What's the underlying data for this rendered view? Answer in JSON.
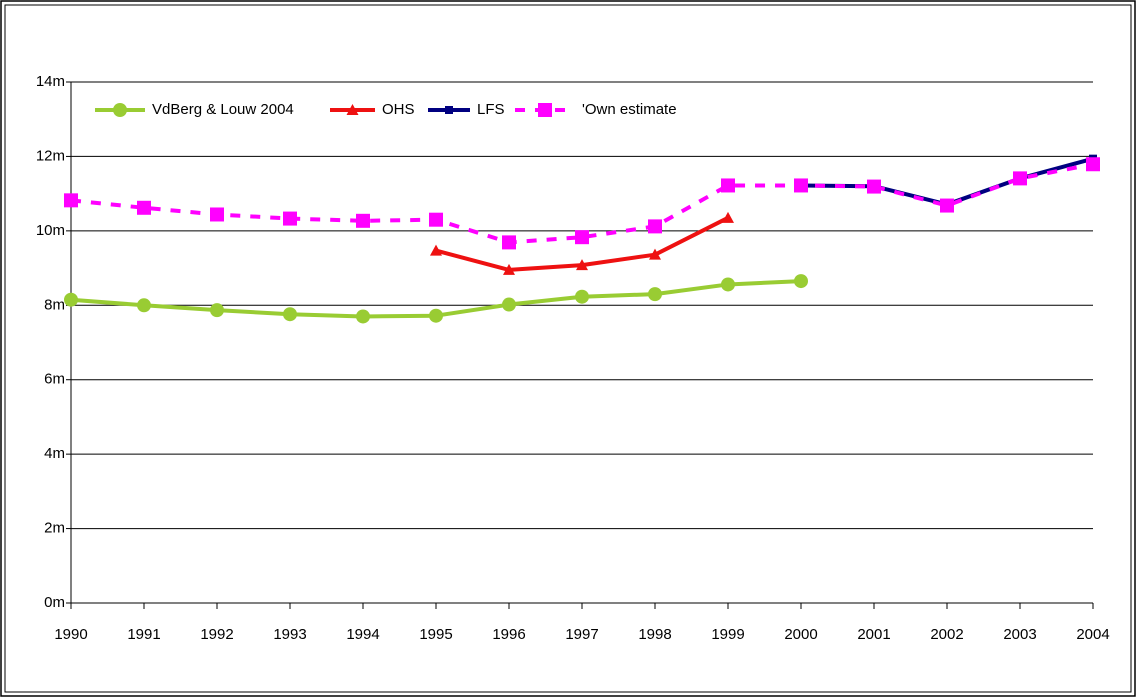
{
  "chart_data": {
    "type": "line",
    "x": [
      1990,
      1991,
      1992,
      1993,
      1994,
      1995,
      1996,
      1997,
      1998,
      1999,
      2000,
      2001,
      2002,
      2003,
      2004
    ],
    "xlim": [
      1990,
      2004
    ],
    "xticks": [
      1990,
      1991,
      1992,
      1993,
      1994,
      1995,
      1996,
      1997,
      1998,
      1999,
      2000,
      2001,
      2002,
      2003,
      2004
    ],
    "ylim": [
      0,
      14
    ],
    "yticks": [
      {
        "value": 0,
        "label": "0m"
      },
      {
        "value": 2,
        "label": "2m"
      },
      {
        "value": 4,
        "label": "4m"
      },
      {
        "value": 6,
        "label": "6m"
      },
      {
        "value": 8,
        "label": "8m"
      },
      {
        "value": 10,
        "label": "10m"
      },
      {
        "value": 12,
        "label": "12m"
      },
      {
        "value": 14,
        "label": "14m"
      }
    ],
    "grid": true,
    "legend": "top-left",
    "series": [
      {
        "name": "VdBerg & Louw 2004",
        "color": "#99cc33",
        "marker": "circle",
        "dashed": false,
        "values": [
          8.15,
          8.0,
          7.87,
          7.76,
          7.7,
          7.72,
          8.02,
          8.23,
          8.3,
          8.56,
          8.65,
          null,
          null,
          null,
          null
        ]
      },
      {
        "name": "OHS",
        "color": "#ee1111",
        "marker": "triangle",
        "dashed": false,
        "values": [
          null,
          null,
          null,
          null,
          null,
          9.47,
          8.95,
          9.08,
          9.36,
          10.35,
          null,
          null,
          null,
          null,
          null
        ]
      },
      {
        "name": "LFS",
        "color": "#000080",
        "marker": "small-square",
        "dashed": false,
        "values": [
          null,
          null,
          null,
          null,
          null,
          null,
          null,
          null,
          null,
          null,
          11.22,
          11.2,
          10.71,
          11.41,
          11.94
        ]
      },
      {
        "name": "'Own estimate",
        "color": "#ff00ff",
        "marker": "square",
        "dashed": true,
        "values": [
          10.82,
          10.62,
          10.44,
          10.33,
          10.27,
          10.3,
          9.69,
          9.83,
          10.12,
          11.22,
          11.22,
          11.19,
          10.68,
          11.41,
          11.79
        ]
      }
    ]
  }
}
